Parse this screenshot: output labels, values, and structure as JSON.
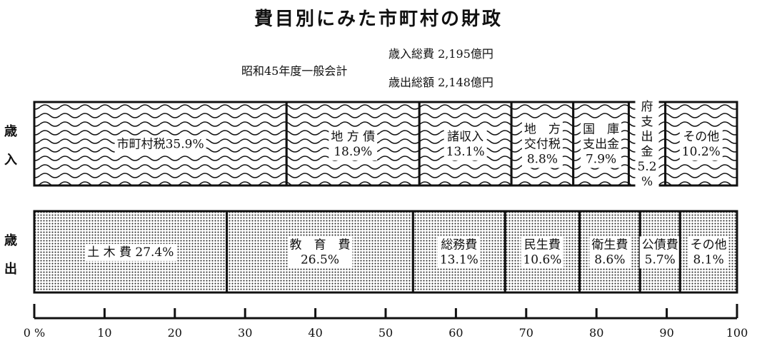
{
  "title": "費目別にみた市町村の財政",
  "basis_label": "昭和45年度一般会計",
  "totals": {
    "revenue": "歳入総費 2,195億円",
    "expenditure": "歳出総額 2,148億円"
  },
  "row_labels": {
    "revenue": [
      "歳",
      "入"
    ],
    "expenditure": [
      "歳",
      "出"
    ]
  },
  "chart_data": {
    "type": "bar",
    "orientation": "horizontal-stacked-100",
    "xlim": [
      0,
      100
    ],
    "x_ticks": [
      0,
      10,
      20,
      30,
      40,
      50,
      60,
      70,
      80,
      90,
      100
    ],
    "x_tick_labels": [
      "0 %",
      "10",
      "20",
      "30",
      "40",
      "50",
      "60",
      "70",
      "80",
      "90",
      "100"
    ],
    "grid": false,
    "series": [
      {
        "name": "歳入",
        "pattern": "wave",
        "segments": [
          {
            "value": 35.9,
            "label": "市町村税35.9%"
          },
          {
            "value": 18.9,
            "label": "地 方 債\n18.9%"
          },
          {
            "value": 13.1,
            "label": "諸収入\n13.1%"
          },
          {
            "value": 8.8,
            "label": "地　方\n交付税\n8.8%"
          },
          {
            "value": 7.9,
            "label": "国　庫\n支出金\n7.9%"
          },
          {
            "value": 5.2,
            "label": "府\n支\n出\n金\n5.2\n%"
          },
          {
            "value": 10.2,
            "label": "その他\n10.2%"
          }
        ]
      },
      {
        "name": "歳出",
        "pattern": "dots",
        "segments": [
          {
            "value": 27.4,
            "label": "土 木 費 27.4%"
          },
          {
            "value": 26.5,
            "label": "教　育　費\n26.5%"
          },
          {
            "value": 13.1,
            "label": "総務費\n13.1%"
          },
          {
            "value": 10.6,
            "label": "民生費\n10.6%"
          },
          {
            "value": 8.6,
            "label": "衛生費\n8.6%"
          },
          {
            "value": 5.7,
            "label": "公債費\n5.7%"
          },
          {
            "value": 8.1,
            "label": "その他\n8.1%"
          }
        ]
      }
    ]
  },
  "colors": {
    "ink": "#111111",
    "background": "#ffffff"
  }
}
